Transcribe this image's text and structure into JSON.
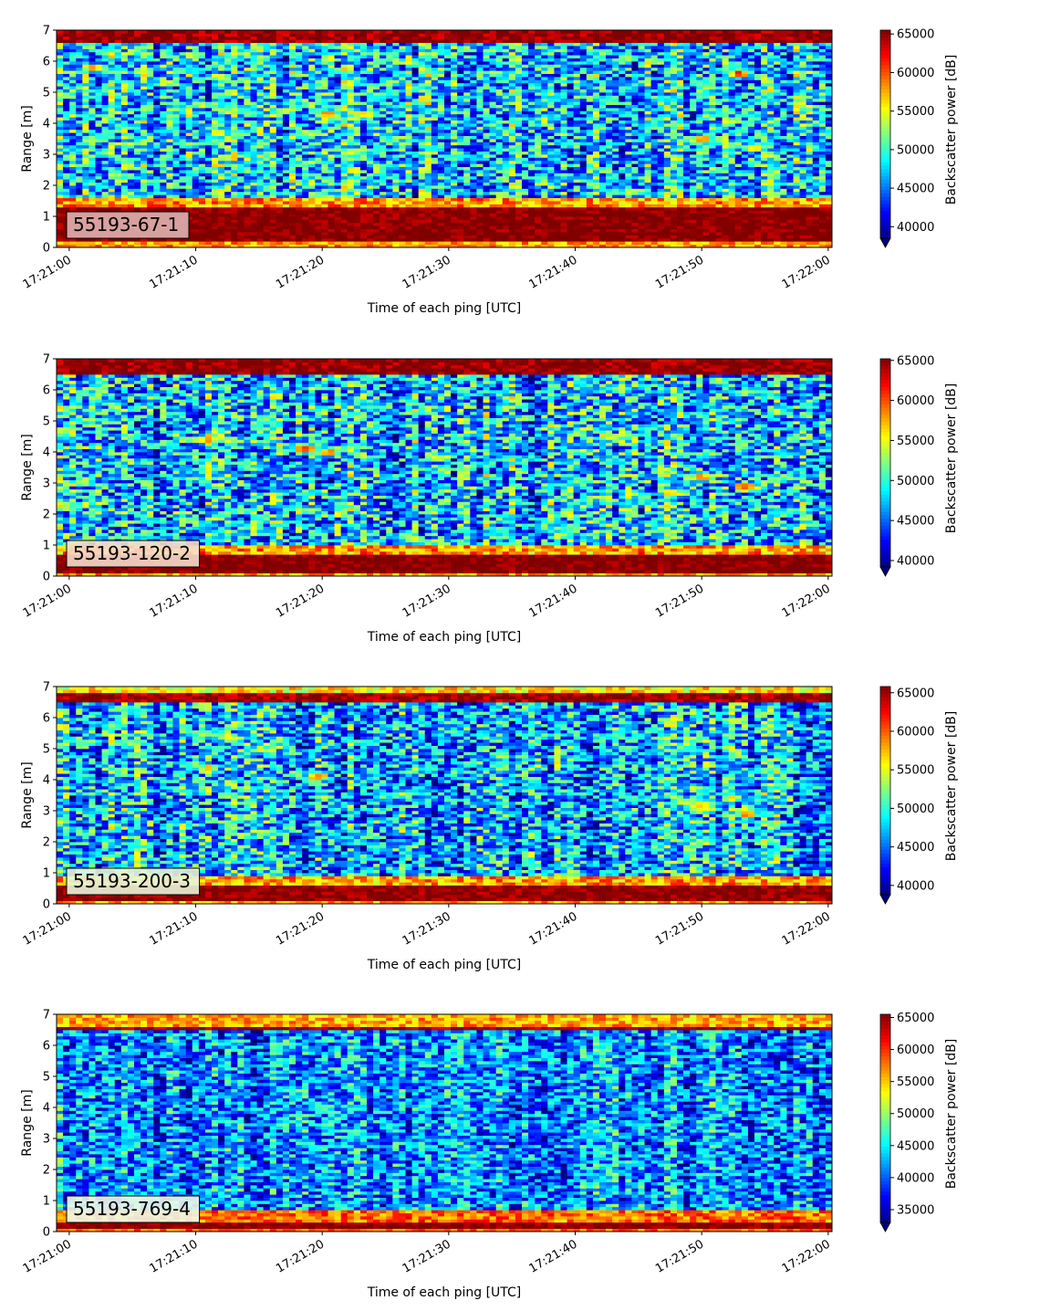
{
  "chart_data": [
    {
      "type": "heatmap",
      "annotation": "55193-67-1",
      "annotation_box_color": "#dfb1b0",
      "xlabel": "Time of each ping [UTC]",
      "ylabel": "Range [m]",
      "x_ticks": [
        "17:21:00",
        "17:21:10",
        "17:21:20",
        "17:21:30",
        "17:21:40",
        "17:21:50",
        "17:22:00"
      ],
      "x_range_seconds": [
        -1,
        60.3
      ],
      "y_ticks": [
        0,
        1,
        2,
        3,
        4,
        5,
        6,
        7
      ],
      "ylim": [
        0,
        7
      ],
      "colorbar": {
        "label": "Backscatter power [dB]",
        "ticks": [
          40000,
          45000,
          50000,
          55000,
          60000,
          65000
        ],
        "range": [
          38500,
          65500
        ],
        "extend": "min",
        "colormap": "jet"
      },
      "features": {
        "bottom_band_m": [
          0.2,
          1.3
        ],
        "top_band_m": [
          6.6,
          7.0
        ],
        "mean_background": 47500,
        "hotspots": [
          {
            "t": 2,
            "r": 5.8,
            "v": 60000
          },
          {
            "t": 10.5,
            "r": 4.6,
            "v": 55500
          },
          {
            "t": 17,
            "r": 4.4,
            "v": 56000
          },
          {
            "t": 20.5,
            "r": 4.3,
            "v": 59500
          },
          {
            "t": 23.5,
            "r": 4.3,
            "v": 58000
          },
          {
            "t": 44.5,
            "r": 1.8,
            "v": 56000
          },
          {
            "t": 50,
            "r": 3.5,
            "v": 60500
          },
          {
            "t": 53,
            "r": 5.6,
            "v": 64000
          },
          {
            "t": 54,
            "r": 3.2,
            "v": 57500
          }
        ]
      }
    },
    {
      "type": "heatmap",
      "annotation": "55193-120-2",
      "annotation_box_color": "#f6dccb",
      "xlabel": "Time of each ping [UTC]",
      "ylabel": "Range [m]",
      "x_ticks": [
        "17:21:00",
        "17:21:10",
        "17:21:20",
        "17:21:30",
        "17:21:40",
        "17:21:50",
        "17:22:00"
      ],
      "x_range_seconds": [
        -1,
        60.3
      ],
      "y_ticks": [
        0,
        1,
        2,
        3,
        4,
        5,
        6,
        7
      ],
      "ylim": [
        0,
        7
      ],
      "colorbar": {
        "label": "Backscatter power [dB]",
        "ticks": [
          40000,
          45000,
          50000,
          55000,
          60000,
          65000
        ],
        "range": [
          39200,
          65200
        ],
        "extend": "min",
        "colormap": "jet"
      },
      "features": {
        "bottom_band_m": [
          0.1,
          0.65
        ],
        "top_band_m": [
          6.5,
          7.0
        ],
        "mean_background": 47500,
        "hotspots": [
          {
            "t": 11,
            "r": 4.4,
            "v": 60000
          },
          {
            "t": 18.5,
            "r": 4.1,
            "v": 62500
          },
          {
            "t": 20.5,
            "r": 4.0,
            "v": 61000
          },
          {
            "t": 50,
            "r": 3.2,
            "v": 61000
          },
          {
            "t": 53.5,
            "r": 2.9,
            "v": 62000
          }
        ]
      }
    },
    {
      "type": "heatmap",
      "annotation": "55193-200-3",
      "annotation_box_color": "#e7f5d8",
      "xlabel": "Time of each ping [UTC]",
      "ylabel": "Range [m]",
      "x_ticks": [
        "17:21:00",
        "17:21:10",
        "17:21:20",
        "17:21:30",
        "17:21:40",
        "17:21:50",
        "17:22:00"
      ],
      "x_range_seconds": [
        -1,
        60.3
      ],
      "y_ticks": [
        0,
        1,
        2,
        3,
        4,
        5,
        6,
        7
      ],
      "ylim": [
        0,
        7
      ],
      "colorbar": {
        "label": "Backscatter power [dB]",
        "ticks": [
          40000,
          45000,
          50000,
          55000,
          60000,
          65000
        ],
        "range": [
          38800,
          65800
        ],
        "extend": "min",
        "colormap": "jet"
      },
      "features": {
        "bottom_band_m": [
          0.1,
          0.55
        ],
        "top_band_m": [
          6.5,
          6.75
        ],
        "mean_background": 47000,
        "hotspots": [
          {
            "t": 11,
            "r": 4.4,
            "v": 58000
          },
          {
            "t": 19.5,
            "r": 4.1,
            "v": 61500
          },
          {
            "t": 50,
            "r": 3.2,
            "v": 60000
          },
          {
            "t": 53.5,
            "r": 2.9,
            "v": 60500
          }
        ]
      }
    },
    {
      "type": "heatmap",
      "annotation": "55193-769-4",
      "annotation_box_color": "#eef8e8",
      "xlabel": "Time of each ping [UTC]",
      "ylabel": "Range [m]",
      "x_ticks": [
        "17:21:00",
        "17:21:10",
        "17:21:20",
        "17:21:30",
        "17:21:40",
        "17:21:50",
        "17:22:00"
      ],
      "x_range_seconds": [
        -1,
        60.3
      ],
      "y_ticks": [
        0,
        1,
        2,
        3,
        4,
        5,
        6,
        7
      ],
      "ylim": [
        0,
        7
      ],
      "colorbar": {
        "label": "Backscatter power [dB]",
        "ticks": [
          35000,
          40000,
          45000,
          50000,
          55000,
          60000,
          65000
        ],
        "range": [
          33000,
          65500
        ],
        "extend": "min",
        "colormap": "jet"
      },
      "features": {
        "bottom_band_m": [
          0.15,
          0.35
        ],
        "top_band_m": [
          6.45,
          6.6
        ],
        "mean_background": 41500,
        "hotspots": [
          {
            "t": 20,
            "r": 4.0,
            "v": 50000
          }
        ]
      }
    }
  ]
}
